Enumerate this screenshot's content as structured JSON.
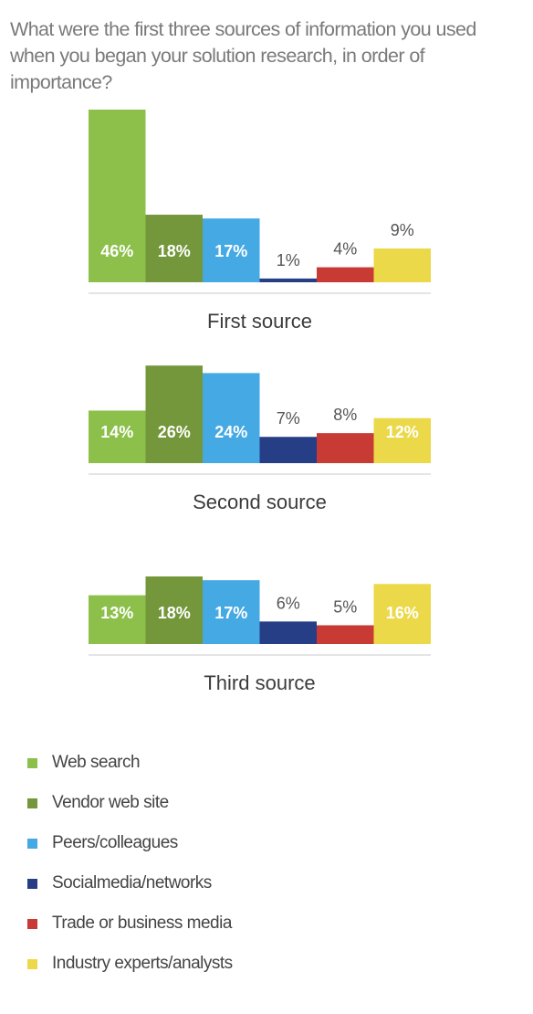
{
  "title": "What were the first three sources of information you used when you began your solution research, in order of importance?",
  "colors": {
    "Web search": "#8cc04a",
    "Vendor web site": "#73973a",
    "Peers/colleagues": "#45a9e4",
    "Socialmedia/networks": "#253e86",
    "Trade or business media": "#c83b35",
    "Industry experts/analysts": "#ebd94a"
  },
  "legend": [
    "Web search",
    "Vendor web site",
    "Peers/colleagues",
    "Socialmedia/networks",
    "Trade or business media",
    "Industry experts/analysts"
  ],
  "chart_data": [
    {
      "type": "bar",
      "xlabel": "First source",
      "categories": [
        "Web search",
        "Vendor web site",
        "Peers/colleagues",
        "Socialmedia/networks",
        "Trade or business media",
        "Industry experts/analysts"
      ],
      "values": [
        46,
        18,
        17,
        1,
        4,
        9
      ],
      "data_labels": [
        "46%",
        "18%",
        "17%",
        "1%",
        "4%",
        "9%"
      ],
      "ylim": [
        0,
        46
      ],
      "grid": false,
      "legend": "bottom"
    },
    {
      "type": "bar",
      "xlabel": "Second source",
      "categories": [
        "Web search",
        "Vendor web site",
        "Peers/colleagues",
        "Socialmedia/networks",
        "Trade or business media",
        "Industry experts/analysts"
      ],
      "values": [
        14,
        26,
        24,
        7,
        8,
        12
      ],
      "data_labels": [
        "14%",
        "26%",
        "24%",
        "7%",
        "8%",
        "12%"
      ],
      "ylim": [
        0,
        46
      ],
      "grid": false,
      "legend": "bottom"
    },
    {
      "type": "bar",
      "xlabel": "Third source",
      "categories": [
        "Web search",
        "Vendor web site",
        "Peers/colleagues",
        "Socialmedia/networks",
        "Trade or business media",
        "Industry experts/analysts"
      ],
      "values": [
        13,
        18,
        17,
        6,
        5,
        16
      ],
      "data_labels": [
        "13%",
        "18%",
        "17%",
        "6%",
        "5%",
        "16%"
      ],
      "ylim": [
        0,
        46
      ],
      "grid": false,
      "legend": "bottom"
    }
  ]
}
